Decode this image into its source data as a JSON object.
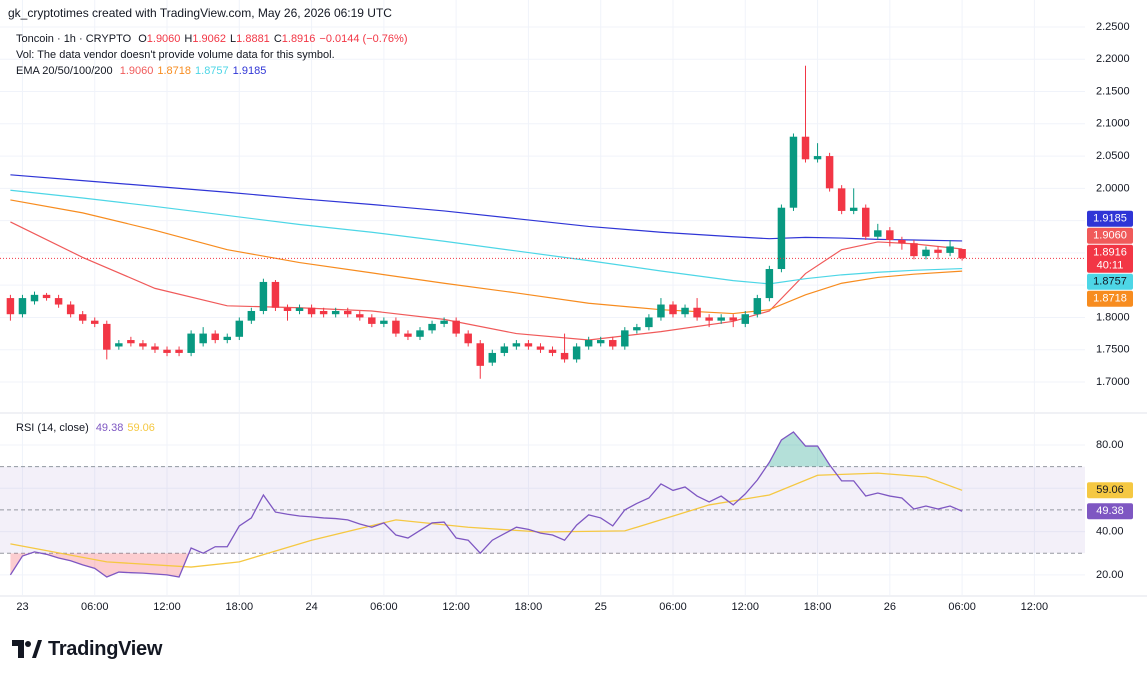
{
  "header": {
    "attribution": "gk_cryptotimes created with TradingView.com, May 26, 2026 06:19 UTC",
    "symbol": "Toncoin · 1h · CRYPTO",
    "ohlc": [
      {
        "key": "O",
        "value": "1.9060"
      },
      {
        "key": "H",
        "value": "1.9062"
      },
      {
        "key": "L",
        "value": "1.8881"
      },
      {
        "key": "C",
        "value": "1.8916"
      }
    ],
    "change": "−0.0144 (−0.76%)",
    "volume_note": "Vol: The data vendor doesn't provide volume data for this symbol.",
    "ema_legend": "EMA 20/50/100/200"
  },
  "chart_data": [
    {
      "type": "candlestick",
      "x": [
        -1,
        0,
        1,
        2,
        3,
        4,
        5,
        6,
        7,
        8,
        9,
        10,
        11,
        12,
        13,
        14,
        15,
        16,
        17,
        18,
        19,
        20,
        21,
        22,
        23,
        24,
        25,
        26,
        27,
        28,
        29,
        30,
        31,
        32,
        33,
        34,
        35,
        36,
        37,
        38,
        39,
        40,
        41,
        42,
        43,
        44,
        45,
        46,
        47,
        48,
        49,
        50,
        51,
        52,
        53,
        54,
        55,
        56,
        57,
        58,
        59,
        60,
        61,
        62,
        63,
        64,
        65,
        66,
        67,
        68,
        69,
        70,
        71,
        72,
        73,
        74,
        75,
        76,
        77,
        78
      ],
      "open": [
        1.83,
        1.805,
        1.825,
        1.835,
        1.83,
        1.82,
        1.805,
        1.795,
        1.79,
        1.755,
        1.765,
        1.76,
        1.755,
        1.75,
        1.75,
        1.745,
        1.76,
        1.775,
        1.765,
        1.77,
        1.795,
        1.81,
        1.855,
        1.815,
        1.81,
        1.815,
        1.81,
        1.805,
        1.81,
        1.805,
        1.8,
        1.79,
        1.795,
        1.775,
        1.77,
        1.78,
        1.79,
        1.795,
        1.775,
        1.76,
        1.73,
        1.745,
        1.755,
        1.76,
        1.755,
        1.75,
        1.745,
        1.735,
        1.755,
        1.76,
        1.765,
        1.755,
        1.78,
        1.785,
        1.8,
        1.82,
        1.805,
        1.815,
        1.8,
        1.795,
        1.8,
        1.79,
        1.805,
        1.83,
        1.875,
        1.97,
        2.08,
        2.045,
        2.05,
        2.0,
        1.965,
        1.97,
        1.925,
        1.935,
        1.92,
        1.915,
        1.895,
        1.905,
        1.9,
        1.906
      ],
      "high": [
        1.835,
        1.835,
        1.84,
        1.838,
        1.835,
        1.825,
        1.81,
        1.8,
        1.795,
        1.765,
        1.77,
        1.765,
        1.76,
        1.755,
        1.755,
        1.78,
        1.785,
        1.78,
        1.775,
        1.8,
        1.815,
        1.86,
        1.858,
        1.82,
        1.82,
        1.82,
        1.815,
        1.815,
        1.815,
        1.81,
        1.805,
        1.8,
        1.8,
        1.78,
        1.785,
        1.795,
        1.8,
        1.8,
        1.78,
        1.765,
        1.75,
        1.76,
        1.765,
        1.765,
        1.76,
        1.755,
        1.775,
        1.76,
        1.77,
        1.77,
        1.77,
        1.785,
        1.79,
        1.805,
        1.83,
        1.825,
        1.82,
        1.83,
        1.805,
        1.805,
        1.805,
        1.81,
        1.835,
        1.88,
        1.975,
        2.085,
        2.19,
        2.07,
        2.055,
        2.005,
        2.0,
        1.975,
        1.945,
        1.94,
        1.925,
        1.92,
        1.91,
        1.91,
        1.92,
        1.9062
      ],
      "low": [
        1.795,
        1.8,
        1.82,
        1.826,
        1.815,
        1.8,
        1.79,
        1.785,
        1.735,
        1.75,
        1.755,
        1.75,
        1.745,
        1.74,
        1.74,
        1.74,
        1.755,
        1.76,
        1.76,
        1.765,
        1.79,
        1.805,
        1.81,
        1.795,
        1.805,
        1.8,
        1.8,
        1.8,
        1.8,
        1.795,
        1.785,
        1.785,
        1.77,
        1.765,
        1.765,
        1.775,
        1.785,
        1.77,
        1.755,
        1.705,
        1.725,
        1.74,
        1.75,
        1.75,
        1.745,
        1.74,
        1.73,
        1.73,
        1.75,
        1.755,
        1.75,
        1.75,
        1.775,
        1.78,
        1.795,
        1.8,
        1.8,
        1.795,
        1.785,
        1.79,
        1.785,
        1.785,
        1.8,
        1.825,
        1.87,
        1.965,
        2.04,
        2.04,
        1.995,
        1.96,
        1.96,
        1.92,
        1.92,
        1.91,
        1.905,
        1.89,
        1.89,
        1.89,
        1.895,
        1.8881
      ],
      "close": [
        1.805,
        1.83,
        1.835,
        1.83,
        1.82,
        1.805,
        1.795,
        1.79,
        1.75,
        1.76,
        1.76,
        1.755,
        1.75,
        1.745,
        1.745,
        1.775,
        1.775,
        1.765,
        1.77,
        1.795,
        1.81,
        1.855,
        1.815,
        1.81,
        1.815,
        1.805,
        1.805,
        1.81,
        1.805,
        1.8,
        1.79,
        1.795,
        1.775,
        1.77,
        1.78,
        1.79,
        1.795,
        1.775,
        1.76,
        1.725,
        1.745,
        1.755,
        1.76,
        1.755,
        1.75,
        1.745,
        1.735,
        1.755,
        1.765,
        1.765,
        1.755,
        1.78,
        1.785,
        1.8,
        1.82,
        1.805,
        1.815,
        1.8,
        1.795,
        1.8,
        1.795,
        1.805,
        1.83,
        1.875,
        1.97,
        2.08,
        2.045,
        2.05,
        2.0,
        1.965,
        1.97,
        1.925,
        1.935,
        1.92,
        1.915,
        1.895,
        1.905,
        1.9,
        1.91,
        1.8916
      ],
      "up_color": "#089981",
      "down_color": "#f23645",
      "last_price_label": "1.8916",
      "countdown": "40:11",
      "series": [
        {
          "color": "#f05a5a",
          "last_label": "1.9060",
          "x": [
            -1,
            5,
            11,
            17,
            23,
            29,
            35,
            41,
            47,
            53,
            59,
            62,
            65,
            68,
            71,
            74,
            78
          ],
          "values": [
            1.948,
            1.893,
            1.845,
            1.818,
            1.815,
            1.81,
            1.797,
            1.775,
            1.765,
            1.778,
            1.794,
            1.81,
            1.868,
            1.905,
            1.917,
            1.914,
            1.906
          ]
        },
        {
          "color": "#f78c1f",
          "last_label": "1.8718",
          "x": [
            -1,
            5,
            11,
            17,
            23,
            29,
            35,
            41,
            47,
            53,
            59,
            62,
            65,
            68,
            71,
            74,
            78
          ],
          "values": [
            1.982,
            1.962,
            1.935,
            1.905,
            1.885,
            1.869,
            1.853,
            1.838,
            1.822,
            1.812,
            1.806,
            1.812,
            1.835,
            1.853,
            1.862,
            1.867,
            1.8718
          ]
        },
        {
          "color": "#4dd6e6",
          "last_label": "1.8757",
          "x": [
            -1,
            5,
            11,
            17,
            23,
            29,
            35,
            41,
            47,
            53,
            59,
            62,
            65,
            68,
            71,
            74,
            78
          ],
          "values": [
            1.997,
            1.985,
            1.972,
            1.958,
            1.944,
            1.932,
            1.918,
            1.903,
            1.888,
            1.872,
            1.857,
            1.852,
            1.86,
            1.866,
            1.87,
            1.873,
            1.8757
          ]
        },
        {
          "color": "#2f35d6",
          "last_label": "1.9185",
          "x": [
            -1,
            5,
            11,
            17,
            23,
            29,
            35,
            41,
            47,
            53,
            59,
            62,
            65,
            68,
            71,
            74,
            78
          ],
          "values": [
            2.021,
            2.012,
            2.003,
            1.994,
            1.984,
            1.975,
            1.965,
            1.953,
            1.941,
            1.932,
            1.925,
            1.922,
            1.924,
            1.923,
            1.921,
            1.92,
            1.9185
          ]
        }
      ],
      "ylim": [
        1.6535,
        2.2918
      ],
      "yticks": [
        {
          "value": 1.7,
          "label": "1.7000"
        },
        {
          "value": 1.75,
          "label": "1.7500"
        },
        {
          "value": 1.8,
          "label": "1.8000"
        },
        {
          "value": 1.85,
          "label": "1.8500"
        },
        {
          "value": 1.9,
          "label": "1.9000"
        },
        {
          "value": 1.95,
          "label": "1.9500"
        },
        {
          "value": 2.0,
          "label": "2.0000"
        },
        {
          "value": 2.05,
          "label": "2.0500"
        },
        {
          "value": 2.1,
          "label": "2.1000"
        },
        {
          "value": 2.15,
          "label": "2.1500"
        },
        {
          "value": 2.2,
          "label": "2.2000"
        },
        {
          "value": 2.25,
          "label": "2.2500"
        }
      ],
      "xlim": [
        -1.2,
        88.2
      ],
      "xticks": [
        {
          "value": 0,
          "label": "23"
        },
        {
          "value": 6,
          "label": "06:00"
        },
        {
          "value": 12,
          "label": "12:00"
        },
        {
          "value": 18,
          "label": "18:00"
        },
        {
          "value": 24,
          "label": "24"
        },
        {
          "value": 30,
          "label": "06:00"
        },
        {
          "value": 36,
          "label": "12:00"
        },
        {
          "value": 42,
          "label": "18:00"
        },
        {
          "value": 48,
          "label": "25"
        },
        {
          "value": 54,
          "label": "06:00"
        },
        {
          "value": 60,
          "label": "12:00"
        },
        {
          "value": 66,
          "label": "18:00"
        },
        {
          "value": 72,
          "label": "26"
        },
        {
          "value": 78,
          "label": "06:00"
        },
        {
          "value": 84,
          "label": "12:00"
        }
      ],
      "grid": true
    },
    {
      "type": "line",
      "title": "RSI (14, close)",
      "series": [
        {
          "color": "#7e57c2",
          "last_label": "49.38",
          "x": [
            -1,
            0,
            1,
            2,
            3,
            4,
            5,
            6,
            7,
            8,
            9,
            10,
            11,
            12,
            13,
            14,
            15,
            16,
            17,
            18,
            19,
            20,
            21,
            22,
            23,
            24,
            25,
            26,
            27,
            28,
            29,
            30,
            31,
            32,
            33,
            34,
            35,
            36,
            37,
            38,
            39,
            40,
            41,
            42,
            43,
            44,
            45,
            46,
            47,
            48,
            49,
            50,
            51,
            52,
            53,
            54,
            55,
            56,
            57,
            58,
            59,
            60,
            61,
            62,
            63,
            64,
            65,
            66,
            67,
            68,
            69,
            70,
            71,
            72,
            73,
            74,
            75,
            76,
            77,
            78
          ],
          "values": [
            20,
            28.7,
            30.6,
            29.5,
            27.8,
            26.5,
            24.6,
            23,
            19,
            21.3,
            21,
            20.8,
            20.4,
            20,
            19,
            32.4,
            30,
            33,
            33,
            42.6,
            46.3,
            56.9,
            49,
            48,
            47.2,
            46.8,
            46.3,
            46,
            45.4,
            43.5,
            42,
            44,
            38.4,
            37,
            40.5,
            44,
            44.4,
            37,
            36,
            30,
            36,
            39,
            42,
            41,
            39.3,
            38.4,
            36,
            43,
            47.7,
            46.3,
            42.6,
            50,
            53,
            55.5,
            62,
            59,
            60.6,
            56.4,
            53.7,
            56.4,
            52.3,
            57.4,
            63.8,
            72,
            82.3,
            86,
            79.5,
            79.5,
            70.8,
            63.4,
            63.4,
            56.4,
            57.8,
            56.4,
            55.5,
            50.4,
            51.8,
            50.4,
            51.8,
            49.38
          ]
        },
        {
          "color": "#f5c842",
          "last_label": "59.06",
          "x": [
            -1,
            7,
            14,
            18,
            24,
            31,
            37,
            43,
            50,
            57,
            62,
            66,
            71,
            75,
            78
          ],
          "values": [
            34.3,
            26,
            23.6,
            26,
            36,
            45.4,
            42,
            39.8,
            40.3,
            52.3,
            56.9,
            66,
            67,
            65.2,
            59.06
          ]
        }
      ],
      "levels": [
        30,
        50,
        70
      ],
      "band_color": "#7e57c2",
      "overbought_color": "#089981",
      "oversold_color": "#f23645",
      "ylim": [
        10.7,
        94.3
      ],
      "yticks": [
        {
          "value": 20,
          "label": "20.00"
        },
        {
          "value": 40,
          "label": "40.00"
        },
        {
          "value": 60,
          "label": "60.00"
        },
        {
          "value": 80,
          "label": "80.00"
        }
      ]
    }
  ],
  "logo": "TradingView"
}
